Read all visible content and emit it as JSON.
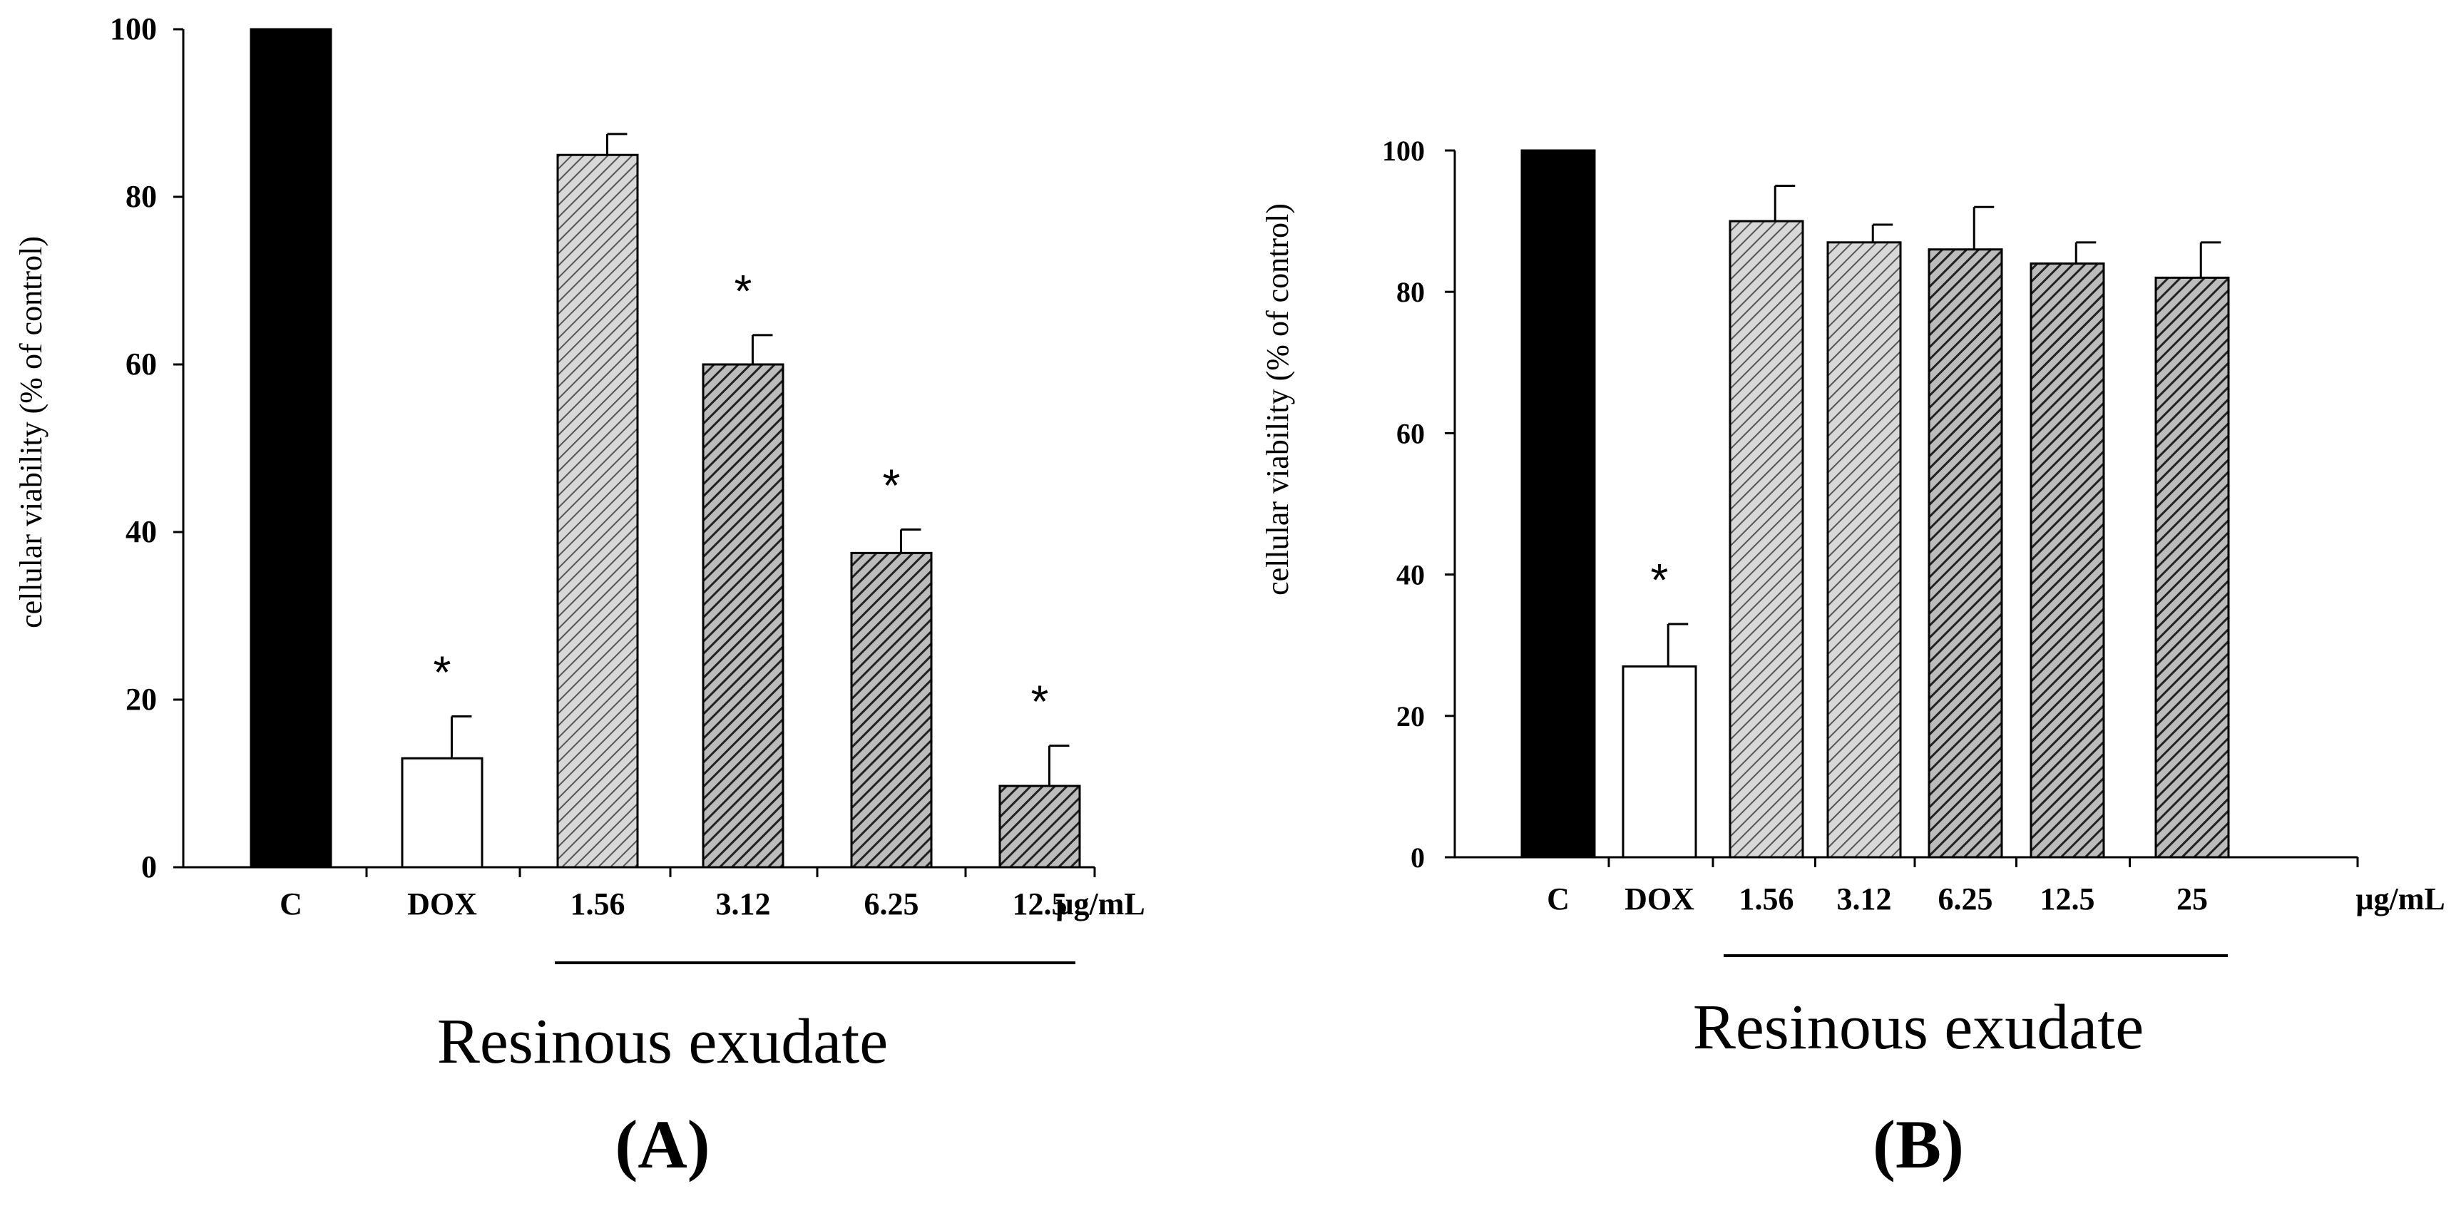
{
  "chart_data": [
    {
      "type": "bar",
      "panel_label": "(A)",
      "ylabel": "cellular viability (% of control)",
      "yticks": [
        "0",
        "20",
        "40",
        "60",
        "80",
        "100"
      ],
      "ylim": [
        0,
        100
      ],
      "unit_label": "µg/mL",
      "group_label": "Resinous exudate",
      "categories": [
        "C",
        "DOX",
        "1.56",
        "3.12",
        "6.25",
        "12.5"
      ],
      "values": [
        100,
        13,
        85,
        60,
        37.5,
        9.7
      ],
      "errors": [
        0,
        5,
        2.5,
        3.5,
        2.8,
        4.8
      ],
      "fills": [
        "black",
        "white",
        "light-hatch",
        "dark-hatch",
        "dark-hatch",
        "dark-hatch"
      ],
      "significant": [
        "",
        "*",
        "",
        "*",
        "*",
        "*"
      ],
      "bracket_from": 2,
      "bracket_to": 5
    },
    {
      "type": "bar",
      "panel_label": "(B)",
      "ylabel": "cellular viability (% of control)",
      "yticks": [
        "0",
        "20",
        "40",
        "60",
        "80",
        "100"
      ],
      "ylim": [
        0,
        100
      ],
      "unit_label": "µg/mL",
      "group_label": "Resinous exudate",
      "categories": [
        "C",
        "DOX",
        "1.56",
        "3.12",
        "6.25",
        "12.5",
        "25"
      ],
      "values": [
        100,
        27,
        90,
        87,
        86,
        84,
        82
      ],
      "errors": [
        0,
        6,
        5,
        2.5,
        6,
        3,
        5
      ],
      "fills": [
        "black",
        "white",
        "light-hatch",
        "light-hatch",
        "dark-hatch",
        "dark-hatch",
        "dark-hatch"
      ],
      "significant": [
        "",
        "*",
        "",
        "",
        "",
        "",
        ""
      ],
      "bracket_from": 2,
      "bracket_to": 6
    }
  ]
}
